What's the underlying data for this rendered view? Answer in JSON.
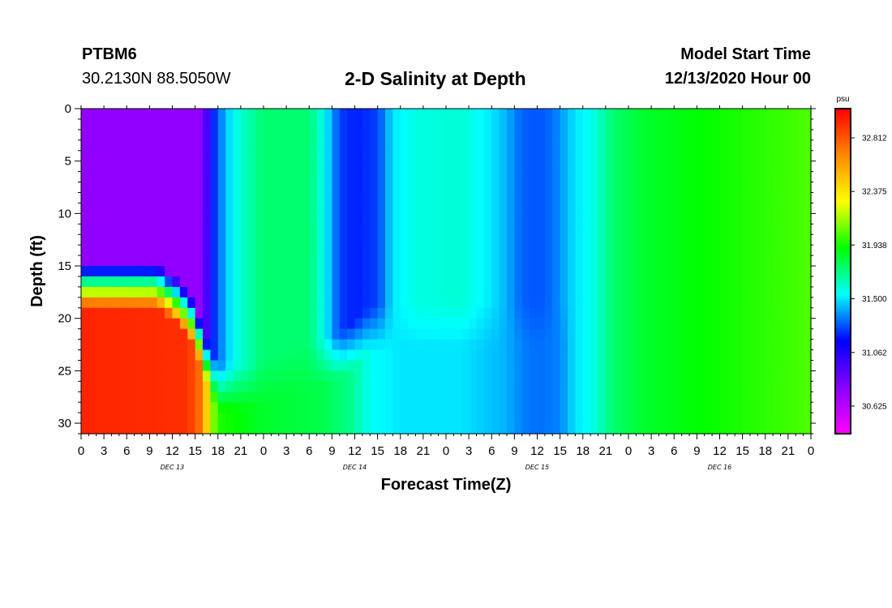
{
  "header": {
    "station": "PTBM6",
    "coords": "30.2130N 88.5050W",
    "title": "2-D Salinity at Depth",
    "model_start_label": "Model Start Time",
    "model_start_value": "12/13/2020 Hour 00"
  },
  "chart_data": {
    "type": "heatmap",
    "title": "2-D Salinity at Depth",
    "xlabel": "Forecast Time(Z)",
    "ylabel": "Depth (ft)",
    "x_range_hours": [
      0,
      96
    ],
    "y_range_ft": [
      0,
      31
    ],
    "x_tick_labels": [
      "0",
      "3",
      "6",
      "9",
      "12",
      "15",
      "18",
      "21",
      "0",
      "3",
      "6",
      "9",
      "12",
      "15",
      "18",
      "21",
      "0",
      "3",
      "6",
      "9",
      "12",
      "15",
      "18",
      "21",
      "0",
      "3",
      "6",
      "9",
      "12",
      "15",
      "18",
      "21",
      "0"
    ],
    "y_tick_values": [
      0,
      5,
      10,
      15,
      20,
      25,
      30
    ],
    "day_labels": [
      {
        "label": "DEC 13",
        "hour": 12
      },
      {
        "label": "DEC 14",
        "hour": 36
      },
      {
        "label": "DEC 15",
        "hour": 60
      },
      {
        "label": "DEC 16",
        "hour": 84
      }
    ],
    "colorbar": {
      "unit": "psu",
      "min": 30.4,
      "max": 33.05,
      "ticks": [
        32.812,
        32.375,
        31.938,
        31.5,
        31.062,
        30.625
      ],
      "colors": [
        "#ff00ff",
        "#8800ff",
        "#0000ff",
        "#00ffff",
        "#00ff00",
        "#ffff00",
        "#ff8800",
        "#ff0000"
      ]
    },
    "layers": {
      "surface_depths_ft": [
        0,
        15
      ],
      "bottom_depths_ft": [
        16,
        31
      ],
      "surface_salinity_by_hour": [
        [
          0,
          30.75
        ],
        [
          16,
          30.75
        ],
        [
          17,
          31.15
        ],
        [
          18,
          31.3
        ],
        [
          20,
          31.55
        ],
        [
          24,
          31.75
        ],
        [
          30,
          31.75
        ],
        [
          32,
          31.55
        ],
        [
          34,
          31.25
        ],
        [
          36,
          31.2
        ],
        [
          39,
          31.25
        ],
        [
          41,
          31.5
        ],
        [
          44,
          31.58
        ],
        [
          50,
          31.6
        ],
        [
          54,
          31.5
        ],
        [
          56,
          31.42
        ],
        [
          58,
          31.3
        ],
        [
          60,
          31.28
        ],
        [
          62,
          31.32
        ],
        [
          65,
          31.5
        ],
        [
          67,
          31.55
        ],
        [
          70,
          31.75
        ],
        [
          74,
          31.85
        ],
        [
          80,
          31.9
        ],
        [
          90,
          31.98
        ],
        [
          96,
          32.03
        ]
      ],
      "bottom_salinity_by_hour": [
        [
          0,
          32.95
        ],
        [
          14,
          32.92
        ],
        [
          16,
          32.7
        ],
        [
          17,
          32.2
        ],
        [
          18,
          31.96
        ],
        [
          20,
          31.92
        ],
        [
          24,
          31.85
        ],
        [
          32,
          31.8
        ],
        [
          35,
          31.72
        ],
        [
          36,
          31.68
        ],
        [
          38,
          31.55
        ],
        [
          42,
          31.5
        ],
        [
          50,
          31.5
        ],
        [
          56,
          31.42
        ],
        [
          58,
          31.35
        ],
        [
          60,
          31.32
        ],
        [
          63,
          31.35
        ],
        [
          65,
          31.5
        ],
        [
          67,
          31.55
        ],
        [
          70,
          31.75
        ],
        [
          74,
          31.85
        ],
        [
          80,
          31.9
        ],
        [
          90,
          31.98
        ],
        [
          96,
          32.03
        ]
      ],
      "halocline_depth_by_hour": [
        [
          0,
          16.8
        ],
        [
          10,
          16.8
        ],
        [
          13,
          18.5
        ],
        [
          15,
          20.5
        ],
        [
          16,
          23
        ],
        [
          17,
          25
        ],
        [
          18,
          26.5
        ],
        [
          22,
          26.5
        ],
        [
          26,
          25.5
        ],
        [
          30,
          24.5
        ],
        [
          34,
          23.5
        ],
        [
          36,
          22.5
        ],
        [
          38,
          21
        ],
        [
          42,
          20.5
        ],
        [
          48,
          20.5
        ],
        [
          60,
          20.5
        ],
        [
          96,
          20.5
        ]
      ]
    }
  }
}
